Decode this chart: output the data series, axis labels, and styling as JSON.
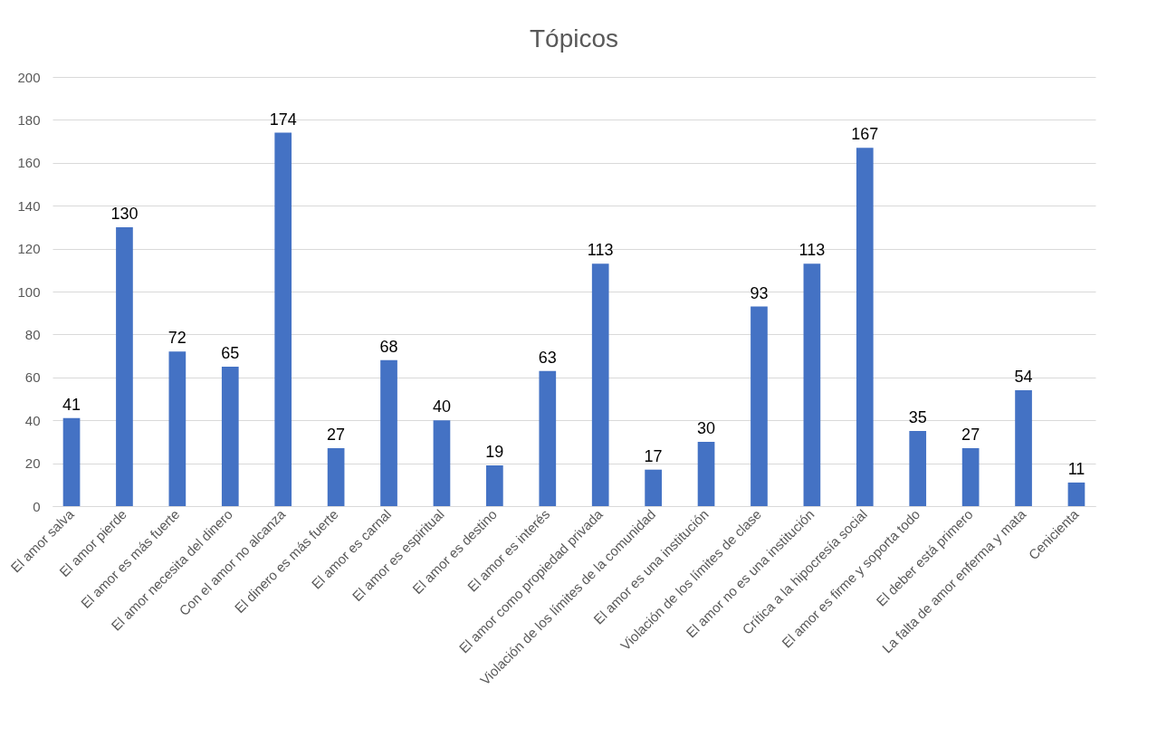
{
  "chart_data": {
    "type": "bar",
    "title": "Tópicos",
    "categories": [
      "El amor salva",
      "El amor pierde",
      "El amor es más fuerte",
      "El amor necesita del dinero",
      "Con el amor no alcanza",
      "El dinero es más fuerte",
      "El amor es carnal",
      "El amor es espiritual",
      "El amor es destino",
      "El amor es interés",
      "El amor como propiedad privada",
      "Violación de los límites de la comunidad",
      "El amor es una institución",
      "Violación de los límites de clase",
      "El amor no es una institución",
      "Crítica a la  hipocresía social",
      "El amor es firme y soporta todo",
      "El deber está primero",
      "La falta de amor enferma y mata",
      "Cenicienta"
    ],
    "values": [
      41,
      130,
      72,
      65,
      174,
      27,
      68,
      40,
      19,
      63,
      113,
      17,
      30,
      93,
      113,
      167,
      35,
      27,
      54,
      11
    ],
    "color": "#4472c4",
    "ylim": [
      0,
      200
    ],
    "yticks": [
      0,
      20,
      40,
      60,
      80,
      100,
      120,
      140,
      160,
      180,
      200
    ],
    "grid": "y",
    "data_labels": true
  }
}
